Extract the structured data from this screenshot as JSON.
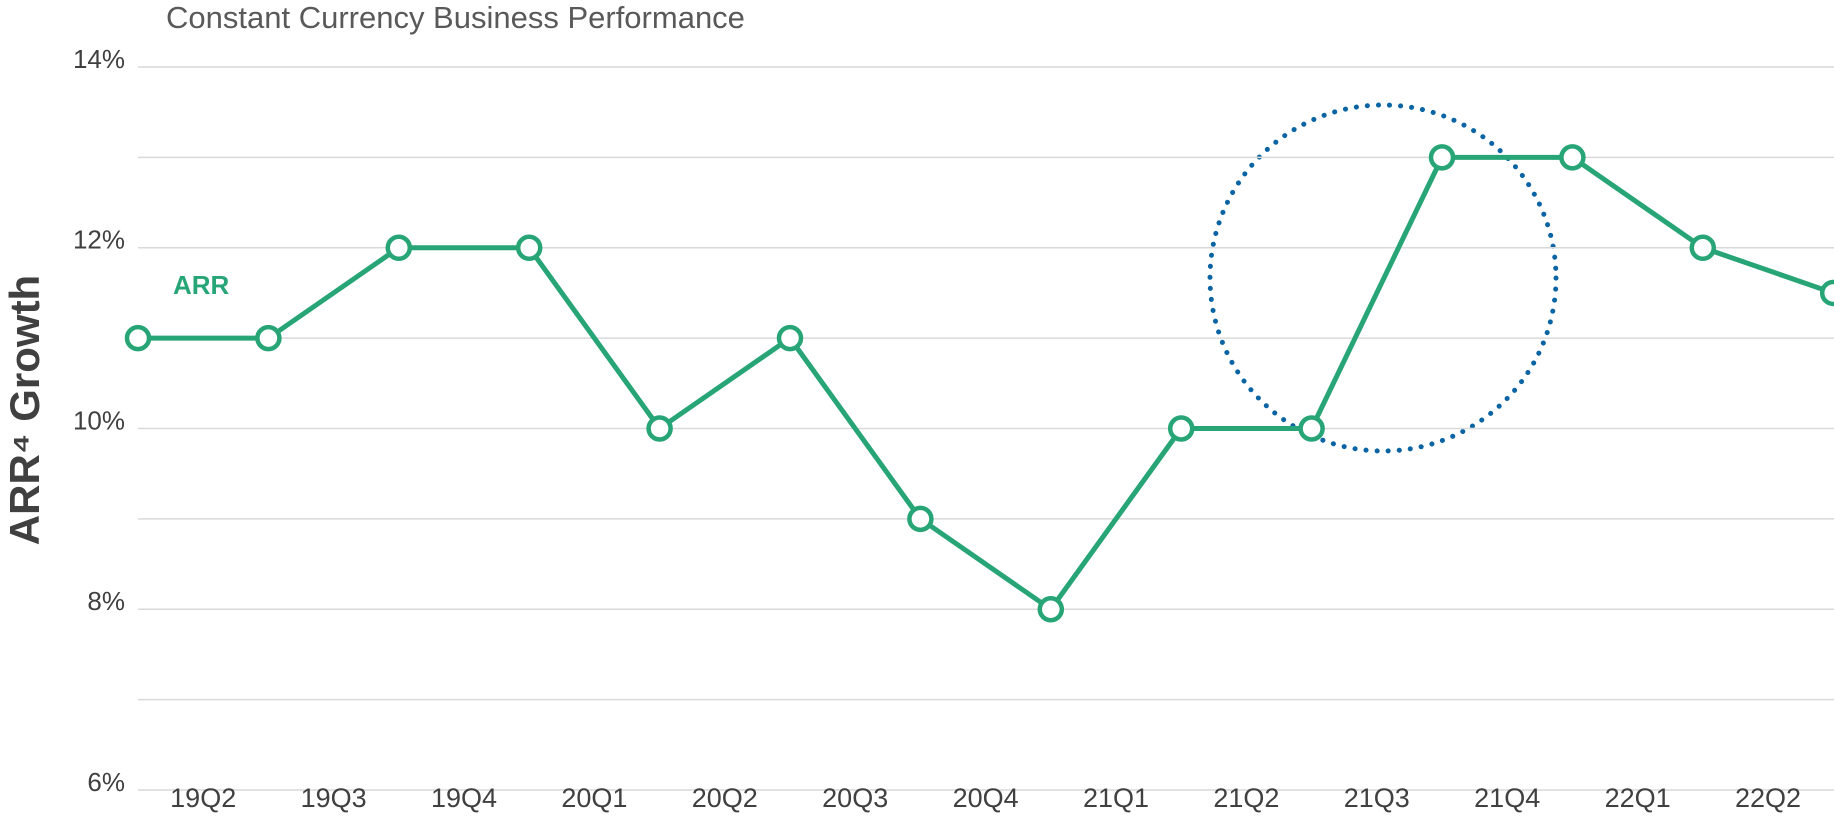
{
  "chart_data": {
    "type": "line",
    "title": "Constant Currency Business Performance",
    "y_axis_label": "ARR⁴ Growth",
    "categories": [
      "19Q2",
      "19Q3",
      "19Q4",
      "20Q1",
      "20Q2",
      "20Q3",
      "20Q4",
      "21Q1",
      "21Q2",
      "21Q3",
      "21Q4",
      "22Q1",
      "22Q2",
      null
    ],
    "series": [
      {
        "name": "ARR",
        "color": "#27a577",
        "values": [
          11,
          11,
          12,
          12,
          10,
          11,
          9,
          8,
          10,
          10,
          13,
          13,
          12,
          11.5
        ]
      }
    ],
    "ylim": [
      6,
      14
    ],
    "yticks": [
      {
        "value": 6,
        "label": "6%"
      },
      {
        "value": 8,
        "label": "8%"
      },
      {
        "value": 10,
        "label": "10%"
      },
      {
        "value": 12,
        "label": "12%"
      },
      {
        "value": 14,
        "label": "14%"
      }
    ],
    "yminor": [
      7,
      9,
      11,
      13
    ],
    "grid": true
  }
}
